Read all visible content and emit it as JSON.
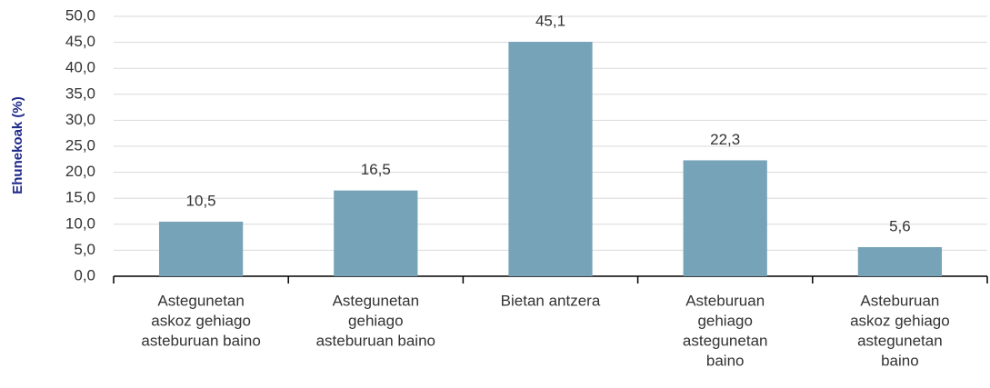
{
  "chart_data": {
    "type": "bar",
    "y_label": "Ehunekoak (%)",
    "categories": [
      [
        "Astegunetan",
        "askoz gehiago",
        "asteburuan baino"
      ],
      [
        "Astegunetan",
        "gehiago",
        "asteburuan baino"
      ],
      [
        "Bietan antzera"
      ],
      [
        "Asteburuan",
        "gehiago",
        "astegunetan",
        "baino"
      ],
      [
        "Asteburuan",
        "askoz gehiago",
        "astegunetan",
        "baino"
      ]
    ],
    "values": [
      10.5,
      16.5,
      45.1,
      22.3,
      5.6
    ],
    "value_labels": [
      "10,5",
      "16,5",
      "45,1",
      "22,3",
      "5,6"
    ],
    "color": "#77a3b8",
    "ylim": [
      0,
      50
    ],
    "yticks": [
      {
        "value": 0,
        "label": "0,0"
      },
      {
        "value": 5,
        "label": "5,0"
      },
      {
        "value": 10,
        "label": "10,0"
      },
      {
        "value": 15,
        "label": "15,0"
      },
      {
        "value": 20,
        "label": "20,0"
      },
      {
        "value": 25,
        "label": "25,0"
      },
      {
        "value": 30,
        "label": "30,0"
      },
      {
        "value": 35,
        "label": "35,0"
      },
      {
        "value": 40,
        "label": "40,0"
      },
      {
        "value": 45,
        "label": "45,0"
      },
      {
        "value": 50,
        "label": "50,0"
      }
    ],
    "grid": true
  }
}
